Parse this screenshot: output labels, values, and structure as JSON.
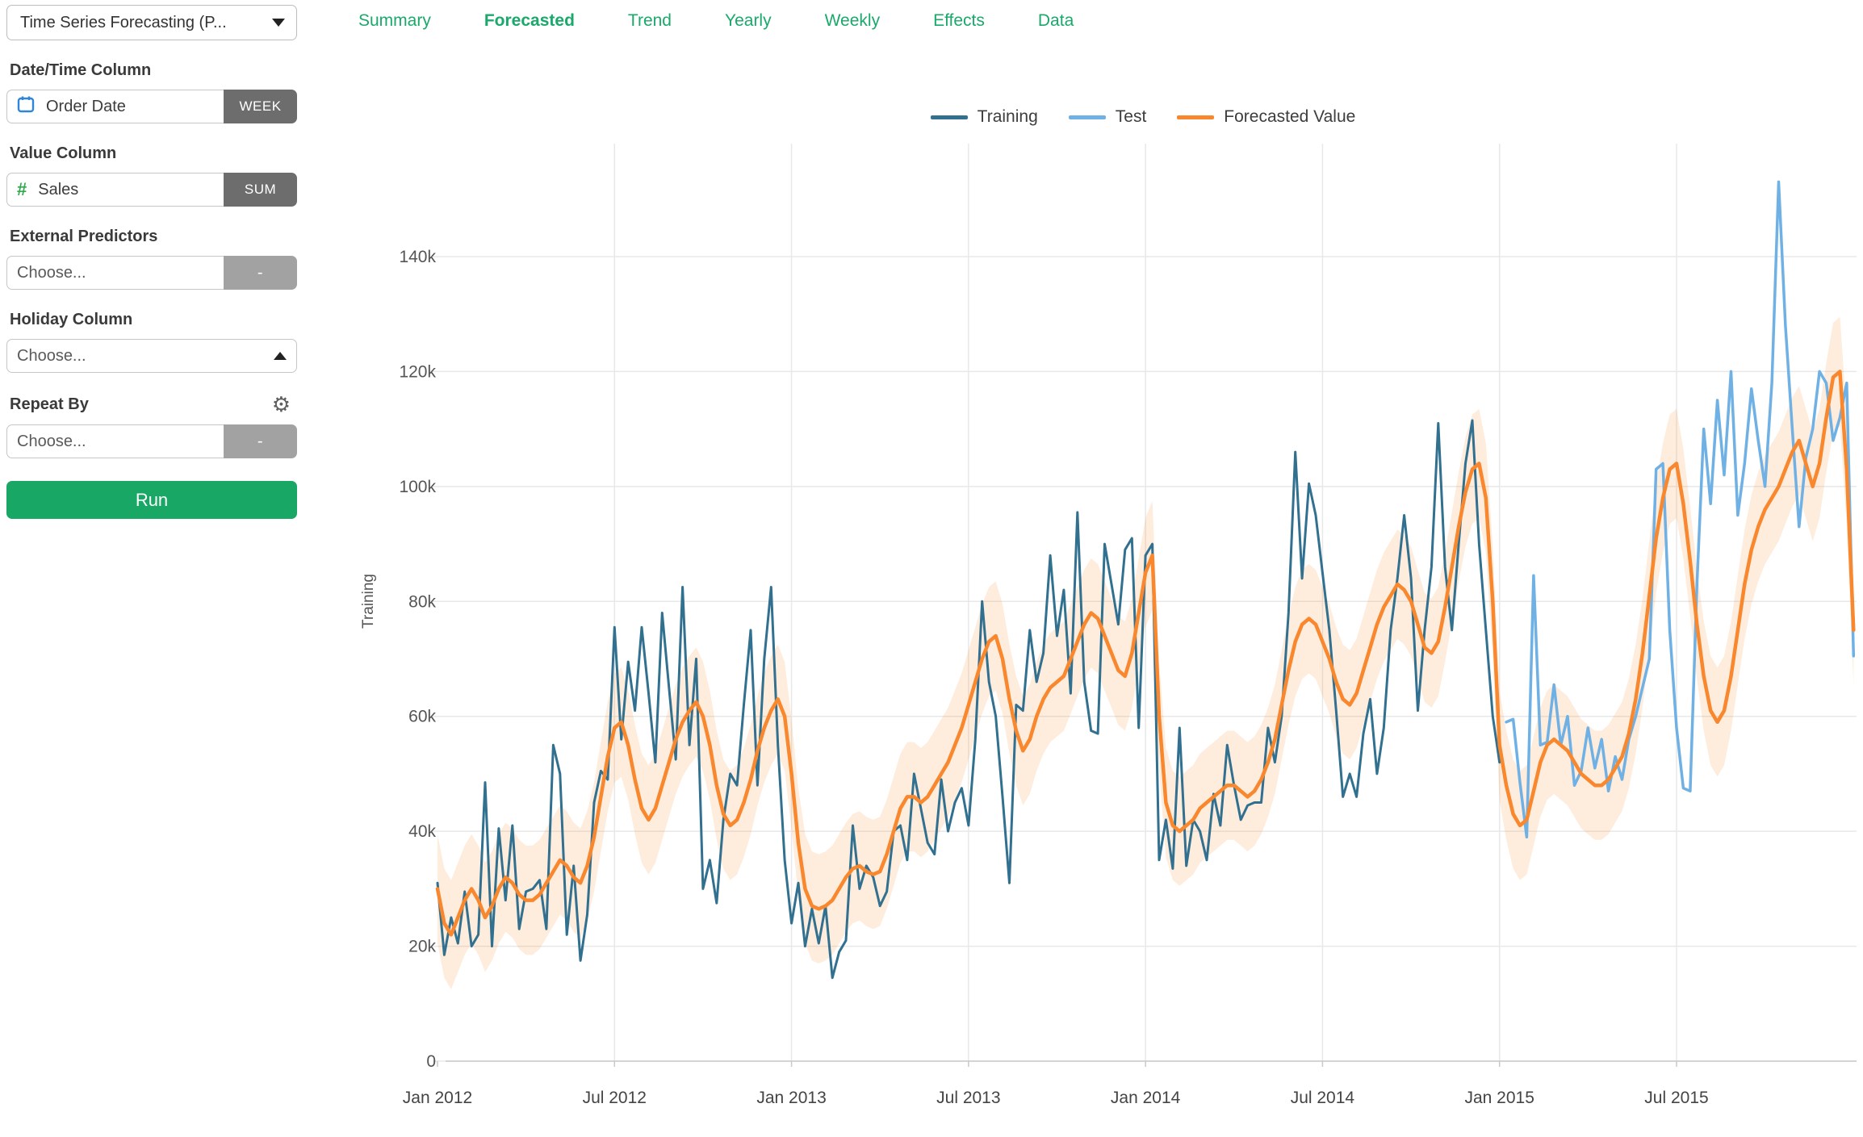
{
  "sidebar": {
    "model_select": {
      "value": "Time Series Forecasting (P..."
    },
    "date_time": {
      "label": "Date/Time Column",
      "value": "Order Date",
      "badge": "WEEK"
    },
    "value_col": {
      "label": "Value Column",
      "value": "Sales",
      "badge": "SUM"
    },
    "external": {
      "label": "External Predictors",
      "placeholder": "Choose...",
      "badge": "-"
    },
    "holiday": {
      "label": "Holiday Column",
      "placeholder": "Choose..."
    },
    "repeat_by": {
      "label": "Repeat By",
      "placeholder": "Choose...",
      "badge": "-"
    },
    "run_label": "Run"
  },
  "tabs": [
    {
      "label": "Summary",
      "active": false
    },
    {
      "label": "Forecasted",
      "active": true
    },
    {
      "label": "Trend",
      "active": false
    },
    {
      "label": "Yearly",
      "active": false
    },
    {
      "label": "Weekly",
      "active": false
    },
    {
      "label": "Effects",
      "active": false
    },
    {
      "label": "Data",
      "active": false
    }
  ],
  "chart_data": {
    "type": "line",
    "title": "",
    "xlabel": "",
    "ylabel": "Training",
    "y_unit": "k",
    "ylim": [
      0,
      157
    ],
    "yticks": [
      0,
      20,
      40,
      60,
      80,
      100,
      120,
      140
    ],
    "ytick_labels": [
      "0",
      "20k",
      "40k",
      "60k",
      "80k",
      "100k",
      "120k",
      "140k"
    ],
    "xtick_labels": [
      "Jan 2012",
      "Jul 2012",
      "Jan 2013",
      "Jul 2013",
      "Jan 2014",
      "Jul 2014",
      "Jan 2015",
      "Jul 2015"
    ],
    "xtick_weeks": [
      0,
      26,
      52,
      78,
      104,
      130,
      156,
      182
    ],
    "grid_weeks": [
      26,
      52,
      78,
      104,
      130,
      156,
      182
    ],
    "x_start": "2012-01-01",
    "x_frequency": "weekly",
    "interval_halfwidth": 9.5,
    "colors": {
      "training": "#31708f",
      "test": "#6fb1e4",
      "forecast": "#f8872d",
      "band": "#f8872d"
    },
    "series": [
      {
        "name": "Training",
        "color": "#31708f",
        "start_week": 0,
        "values": [
          31,
          18.5,
          25,
          20.5,
          29.5,
          20,
          22,
          48.5,
          20,
          40.5,
          28,
          41,
          23,
          29.5,
          30,
          31.5,
          23,
          55,
          50,
          22,
          34,
          17.5,
          25.5,
          45,
          50.5,
          49,
          75.5,
          56,
          69.5,
          61,
          75.5,
          64,
          52,
          78,
          65,
          52.5,
          82.5,
          55,
          70,
          30,
          35,
          27.5,
          42,
          50,
          48,
          62,
          75,
          48,
          70,
          82.5,
          55,
          35,
          24,
          31,
          20,
          26.5,
          20.5,
          27,
          14.5,
          19,
          21,
          41,
          30,
          34,
          32,
          27,
          29.5,
          40,
          41,
          35,
          50,
          44,
          38,
          36,
          49,
          40,
          45,
          47.5,
          41,
          56,
          80,
          66,
          60,
          46,
          31,
          62,
          61,
          75,
          66,
          71,
          88,
          74,
          82,
          64,
          95.5,
          66,
          57.5,
          57,
          90,
          83,
          76,
          89,
          91,
          58,
          88,
          90,
          35,
          42,
          33.5,
          58,
          34,
          42,
          40,
          35,
          46.5,
          41,
          55,
          48,
          42,
          44.5,
          45,
          45,
          58,
          52,
          60,
          78,
          106,
          84,
          100.5,
          95,
          85,
          75,
          61,
          46,
          50,
          46,
          57,
          63,
          50,
          58,
          75,
          84,
          95,
          84,
          61,
          75,
          86,
          111,
          86,
          75,
          90,
          104,
          111.5,
          90,
          75,
          60,
          52
        ]
      },
      {
        "name": "Test",
        "color": "#6fb1e4",
        "start_week": 157,
        "values": [
          59,
          59.5,
          48.5,
          39,
          84.5,
          55,
          55.5,
          65.5,
          55,
          60,
          48,
          50.5,
          58,
          51,
          56,
          47,
          53,
          49,
          56,
          60,
          65,
          70,
          103,
          104,
          75,
          58,
          47.5,
          47,
          83,
          110,
          97,
          115,
          102,
          120,
          95,
          104,
          117,
          108,
          100,
          118,
          153,
          128,
          110,
          93,
          105,
          110,
          120,
          118,
          108,
          112,
          118,
          70.5
        ]
      },
      {
        "name": "Forecasted Value",
        "color": "#f8872d",
        "start_week": 0,
        "values": [
          30,
          24,
          22,
          25,
          28,
          30,
          28,
          25,
          27,
          30,
          32,
          31,
          29,
          28,
          28,
          29,
          31,
          33,
          35,
          34,
          32,
          31,
          34,
          39,
          46,
          53,
          58,
          59,
          55,
          49,
          44,
          42,
          44,
          48,
          52,
          56,
          59,
          61,
          62.5,
          60,
          55,
          48,
          43,
          41,
          42,
          45,
          49,
          54,
          58,
          61,
          63,
          60,
          50,
          38,
          30,
          27,
          26.5,
          27,
          28,
          30,
          32,
          33.5,
          34,
          33,
          32.5,
          33,
          36,
          40,
          44,
          46,
          46,
          45,
          46,
          48,
          50,
          52,
          55,
          58,
          62,
          66,
          70,
          73,
          74,
          70,
          63,
          57.5,
          54,
          56,
          60,
          63,
          65,
          66,
          67,
          70,
          73,
          76,
          78,
          77,
          74,
          71,
          68,
          67,
          71,
          78,
          85,
          88,
          60,
          45,
          41,
          40,
          41,
          42,
          44,
          45,
          46,
          47,
          48,
          48,
          47,
          46,
          47,
          49,
          52,
          56,
          62,
          68,
          73,
          76,
          77,
          76,
          73,
          70,
          66,
          63,
          62,
          64,
          68,
          72,
          76,
          79,
          81,
          83,
          82,
          80,
          76,
          72,
          71,
          73,
          79,
          86,
          93,
          99,
          103,
          104,
          98,
          80,
          55,
          48,
          43,
          41,
          42,
          47,
          52,
          55,
          56,
          55,
          54,
          52,
          50,
          49,
          48,
          48,
          49,
          51,
          53,
          57,
          63,
          71,
          81,
          91,
          98,
          103,
          104,
          97,
          87,
          76,
          67,
          61,
          59,
          61,
          67,
          75,
          83,
          89,
          93,
          96,
          98,
          100,
          103,
          106,
          108,
          104,
          100,
          104,
          112,
          119,
          120,
          103,
          75
        ]
      }
    ],
    "legend": [
      "Training",
      "Test",
      "Forecasted Value"
    ],
    "legend_position": "top-center",
    "grid": true
  }
}
